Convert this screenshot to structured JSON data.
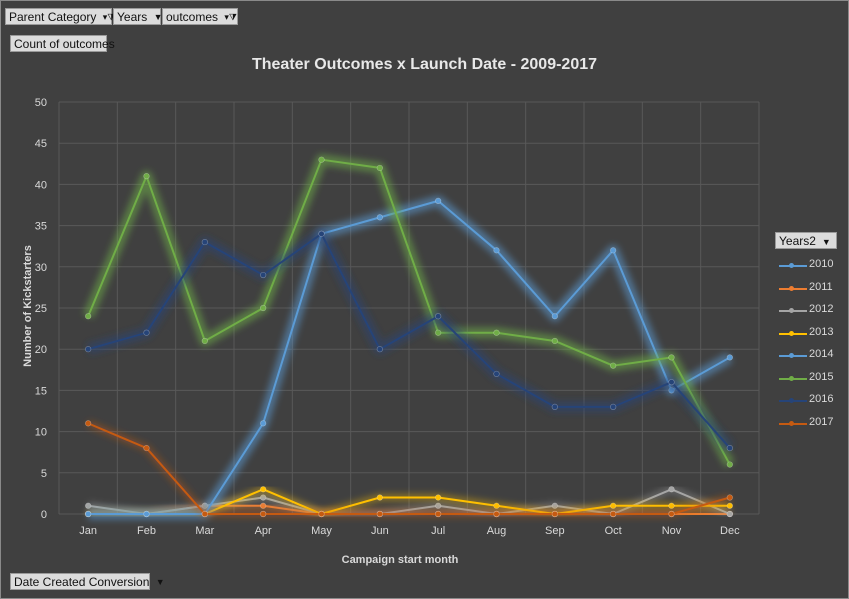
{
  "filters": {
    "parent_category": "Parent Category",
    "years": "Years",
    "outcomes": "outcomes"
  },
  "value_button": "Count of outcomes",
  "axis_button": "Date Created Conversion",
  "legend_button": "Years2",
  "icons": {
    "filter": "funnel-filter-icon",
    "dropdown": "dropdown-arrow-icon"
  },
  "chart_data": {
    "type": "line",
    "title": "Theater Outcomes x Launch Date - 2009-2017",
    "xlabel": "Campaign start month",
    "ylabel": "Number of Kickstarters",
    "categories": [
      "Jan",
      "Feb",
      "Mar",
      "Apr",
      "May",
      "Jun",
      "Jul",
      "Aug",
      "Sep",
      "Oct",
      "Nov",
      "Dec"
    ],
    "ylim": [
      0,
      50
    ],
    "yticks": [
      0,
      5,
      10,
      15,
      20,
      25,
      30,
      35,
      40,
      45,
      50
    ],
    "grid": true,
    "legend_position": "right",
    "series": [
      {
        "name": "2010",
        "color": "#5b9bd5",
        "glow": false,
        "values": [
          0,
          0,
          0,
          0,
          0,
          0,
          0,
          0,
          0,
          0,
          0,
          0
        ]
      },
      {
        "name": "2011",
        "color": "#ed7d31",
        "glow": false,
        "values": [
          0,
          0,
          1,
          1,
          0,
          0,
          0,
          0,
          0,
          0,
          0,
          0
        ]
      },
      {
        "name": "2012",
        "color": "#a5a5a5",
        "glow": false,
        "values": [
          1,
          0,
          1,
          2,
          0,
          0,
          1,
          0,
          1,
          0,
          3,
          0
        ]
      },
      {
        "name": "2013",
        "color": "#ffc000",
        "glow": false,
        "values": [
          0,
          0,
          0,
          3,
          0,
          2,
          2,
          1,
          0,
          1,
          1,
          1
        ]
      },
      {
        "name": "2014",
        "color": "#5b9bd5",
        "glow": true,
        "values": [
          0,
          0,
          0,
          11,
          34,
          36,
          38,
          32,
          24,
          32,
          15,
          19
        ]
      },
      {
        "name": "2015",
        "color": "#70ad47",
        "glow": true,
        "values": [
          24,
          41,
          21,
          25,
          43,
          42,
          22,
          22,
          21,
          18,
          19,
          6
        ]
      },
      {
        "name": "2016",
        "color": "#264478",
        "glow": true,
        "values": [
          20,
          22,
          33,
          29,
          34,
          20,
          24,
          17,
          13,
          13,
          16,
          8
        ]
      },
      {
        "name": "2017",
        "color": "#c55a11",
        "glow": false,
        "values": [
          11,
          8,
          0,
          0,
          0,
          0,
          0,
          0,
          0,
          0,
          0,
          2
        ]
      }
    ]
  }
}
